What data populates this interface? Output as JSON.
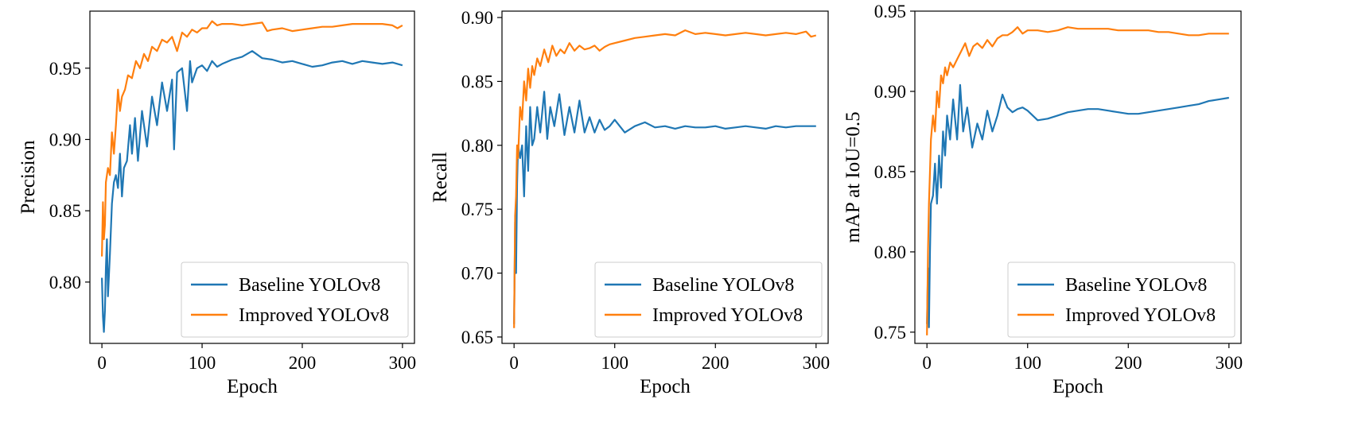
{
  "chart_data": [
    {
      "type": "line",
      "title": "",
      "xlabel": "Epoch",
      "ylabel": "Precision",
      "xlim": [
        -12,
        312
      ],
      "ylim": [
        0.757,
        0.99
      ],
      "xticks": [
        0,
        100,
        200,
        300
      ],
      "yticks": [
        0.8,
        0.85,
        0.9,
        0.95
      ],
      "ytick_labels": [
        "0.80",
        "0.85",
        "0.90",
        "0.95"
      ],
      "grid": false,
      "legend_position": "lower-right",
      "series": [
        {
          "name": "Baseline YOLOv8",
          "color": "#1f77b4",
          "x": [
            0,
            1,
            2,
            3,
            4,
            5,
            6,
            8,
            10,
            12,
            14,
            16,
            18,
            20,
            22,
            25,
            28,
            30,
            33,
            36,
            40,
            45,
            50,
            55,
            60,
            65,
            70,
            72,
            75,
            80,
            85,
            88,
            90,
            95,
            100,
            105,
            110,
            115,
            120,
            130,
            140,
            150,
            160,
            170,
            180,
            190,
            200,
            210,
            220,
            230,
            240,
            250,
            260,
            270,
            280,
            290,
            300
          ],
          "y": [
            0.803,
            0.776,
            0.765,
            0.78,
            0.81,
            0.83,
            0.79,
            0.82,
            0.855,
            0.87,
            0.875,
            0.866,
            0.89,
            0.86,
            0.88,
            0.885,
            0.91,
            0.89,
            0.915,
            0.885,
            0.92,
            0.895,
            0.93,
            0.91,
            0.94,
            0.92,
            0.942,
            0.893,
            0.947,
            0.95,
            0.92,
            0.955,
            0.94,
            0.95,
            0.952,
            0.948,
            0.955,
            0.951,
            0.953,
            0.956,
            0.958,
            0.962,
            0.957,
            0.956,
            0.954,
            0.955,
            0.953,
            0.951,
            0.952,
            0.954,
            0.955,
            0.953,
            0.955,
            0.954,
            0.953,
            0.954,
            0.952
          ]
        },
        {
          "name": "Improved YOLOv8",
          "color": "#ff7f0e",
          "x": [
            0,
            1,
            2,
            3,
            4,
            6,
            8,
            10,
            12,
            14,
            16,
            18,
            20,
            23,
            26,
            30,
            34,
            38,
            42,
            46,
            50,
            55,
            60,
            65,
            70,
            75,
            80,
            85,
            90,
            95,
            100,
            105,
            110,
            115,
            120,
            130,
            140,
            150,
            160,
            165,
            170,
            180,
            190,
            200,
            210,
            220,
            230,
            240,
            250,
            260,
            270,
            280,
            290,
            295,
            300
          ],
          "y": [
            0.818,
            0.856,
            0.83,
            0.84,
            0.87,
            0.88,
            0.875,
            0.905,
            0.89,
            0.91,
            0.935,
            0.92,
            0.93,
            0.935,
            0.945,
            0.943,
            0.955,
            0.95,
            0.96,
            0.955,
            0.965,
            0.962,
            0.97,
            0.968,
            0.972,
            0.962,
            0.975,
            0.972,
            0.977,
            0.975,
            0.978,
            0.978,
            0.983,
            0.98,
            0.981,
            0.981,
            0.98,
            0.981,
            0.982,
            0.976,
            0.977,
            0.978,
            0.976,
            0.977,
            0.978,
            0.979,
            0.979,
            0.98,
            0.981,
            0.981,
            0.981,
            0.981,
            0.98,
            0.978,
            0.98
          ]
        }
      ]
    },
    {
      "type": "line",
      "title": "",
      "xlabel": "Epoch",
      "ylabel": "Recall",
      "xlim": [
        -12,
        312
      ],
      "ylim": [
        0.645,
        0.905
      ],
      "xticks": [
        0,
        100,
        200,
        300
      ],
      "yticks": [
        0.65,
        0.7,
        0.75,
        0.8,
        0.85,
        0.9
      ],
      "ytick_labels": [
        "0.65",
        "0.70",
        "0.75",
        "0.80",
        "0.85",
        "0.90"
      ],
      "grid": false,
      "legend_position": "lower-right",
      "series": [
        {
          "name": "Baseline YOLOv8",
          "color": "#1f77b4",
          "x": [
            0,
            1,
            2,
            3,
            4,
            6,
            8,
            10,
            12,
            14,
            16,
            18,
            20,
            23,
            26,
            30,
            33,
            36,
            40,
            45,
            50,
            55,
            60,
            65,
            70,
            75,
            80,
            85,
            90,
            95,
            100,
            110,
            120,
            130,
            140,
            150,
            160,
            170,
            180,
            190,
            200,
            210,
            220,
            230,
            240,
            250,
            260,
            270,
            280,
            290,
            300
          ],
          "y": [
            0.66,
            0.74,
            0.7,
            0.77,
            0.8,
            0.79,
            0.8,
            0.76,
            0.815,
            0.78,
            0.83,
            0.8,
            0.805,
            0.83,
            0.81,
            0.842,
            0.805,
            0.83,
            0.815,
            0.84,
            0.808,
            0.83,
            0.81,
            0.835,
            0.81,
            0.822,
            0.81,
            0.82,
            0.812,
            0.815,
            0.82,
            0.81,
            0.815,
            0.818,
            0.814,
            0.815,
            0.813,
            0.815,
            0.814,
            0.814,
            0.815,
            0.813,
            0.814,
            0.815,
            0.814,
            0.813,
            0.815,
            0.814,
            0.815,
            0.815,
            0.815
          ]
        },
        {
          "name": "Improved YOLOv8",
          "color": "#ff7f0e",
          "x": [
            0,
            1,
            2,
            3,
            4,
            6,
            8,
            10,
            12,
            14,
            16,
            18,
            20,
            23,
            26,
            30,
            34,
            38,
            42,
            46,
            50,
            55,
            60,
            65,
            70,
            75,
            80,
            85,
            90,
            95,
            100,
            110,
            120,
            130,
            140,
            150,
            160,
            170,
            180,
            190,
            200,
            210,
            220,
            230,
            240,
            250,
            260,
            270,
            280,
            290,
            295,
            300
          ],
          "y": [
            0.657,
            0.745,
            0.76,
            0.8,
            0.79,
            0.83,
            0.82,
            0.85,
            0.835,
            0.86,
            0.845,
            0.862,
            0.855,
            0.868,
            0.862,
            0.875,
            0.865,
            0.878,
            0.87,
            0.875,
            0.872,
            0.88,
            0.874,
            0.878,
            0.875,
            0.876,
            0.878,
            0.874,
            0.877,
            0.879,
            0.88,
            0.882,
            0.884,
            0.885,
            0.886,
            0.887,
            0.886,
            0.89,
            0.887,
            0.888,
            0.887,
            0.886,
            0.887,
            0.888,
            0.887,
            0.886,
            0.887,
            0.888,
            0.887,
            0.889,
            0.885,
            0.886
          ]
        }
      ]
    },
    {
      "type": "line",
      "title": "",
      "xlabel": "Epoch",
      "ylabel": "mAP at IoU=0.5",
      "xlim": [
        -12,
        312
      ],
      "ylim": [
        0.743,
        0.95
      ],
      "xticks": [
        0,
        100,
        200,
        300
      ],
      "yticks": [
        0.75,
        0.8,
        0.85,
        0.9,
        0.95
      ],
      "ytick_labels": [
        "0.75",
        "0.80",
        "0.85",
        "0.90",
        "0.95"
      ],
      "grid": false,
      "legend_position": "lower-right",
      "series": [
        {
          "name": "Baseline YOLOv8",
          "color": "#1f77b4",
          "x": [
            0,
            1,
            2,
            3,
            4,
            6,
            8,
            10,
            12,
            14,
            16,
            18,
            20,
            23,
            26,
            30,
            33,
            36,
            40,
            45,
            50,
            55,
            60,
            65,
            70,
            75,
            80,
            85,
            90,
            95,
            100,
            110,
            120,
            130,
            140,
            150,
            160,
            170,
            180,
            190,
            200,
            210,
            220,
            230,
            240,
            250,
            260,
            270,
            280,
            290,
            300
          ],
          "y": [
            0.755,
            0.79,
            0.753,
            0.8,
            0.83,
            0.835,
            0.855,
            0.83,
            0.86,
            0.84,
            0.875,
            0.86,
            0.885,
            0.87,
            0.895,
            0.87,
            0.904,
            0.875,
            0.89,
            0.865,
            0.88,
            0.87,
            0.888,
            0.875,
            0.885,
            0.898,
            0.89,
            0.887,
            0.889,
            0.89,
            0.888,
            0.882,
            0.883,
            0.885,
            0.887,
            0.888,
            0.889,
            0.889,
            0.888,
            0.887,
            0.886,
            0.886,
            0.887,
            0.888,
            0.889,
            0.89,
            0.891,
            0.892,
            0.894,
            0.895,
            0.896
          ]
        },
        {
          "name": "Improved YOLOv8",
          "color": "#ff7f0e",
          "x": [
            0,
            1,
            2,
            3,
            4,
            6,
            8,
            10,
            12,
            14,
            16,
            18,
            20,
            23,
            26,
            30,
            34,
            38,
            42,
            46,
            50,
            55,
            60,
            65,
            70,
            75,
            80,
            85,
            90,
            95,
            100,
            110,
            120,
            130,
            140,
            150,
            160,
            170,
            180,
            190,
            200,
            210,
            220,
            230,
            240,
            250,
            260,
            270,
            280,
            290,
            300
          ],
          "y": [
            0.748,
            0.8,
            0.83,
            0.85,
            0.87,
            0.885,
            0.875,
            0.9,
            0.89,
            0.91,
            0.905,
            0.915,
            0.91,
            0.918,
            0.915,
            0.92,
            0.925,
            0.93,
            0.922,
            0.928,
            0.93,
            0.927,
            0.932,
            0.928,
            0.933,
            0.935,
            0.935,
            0.937,
            0.94,
            0.936,
            0.938,
            0.938,
            0.937,
            0.938,
            0.94,
            0.939,
            0.939,
            0.939,
            0.939,
            0.938,
            0.938,
            0.938,
            0.938,
            0.937,
            0.937,
            0.936,
            0.935,
            0.935,
            0.936,
            0.936,
            0.936
          ]
        }
      ]
    }
  ]
}
